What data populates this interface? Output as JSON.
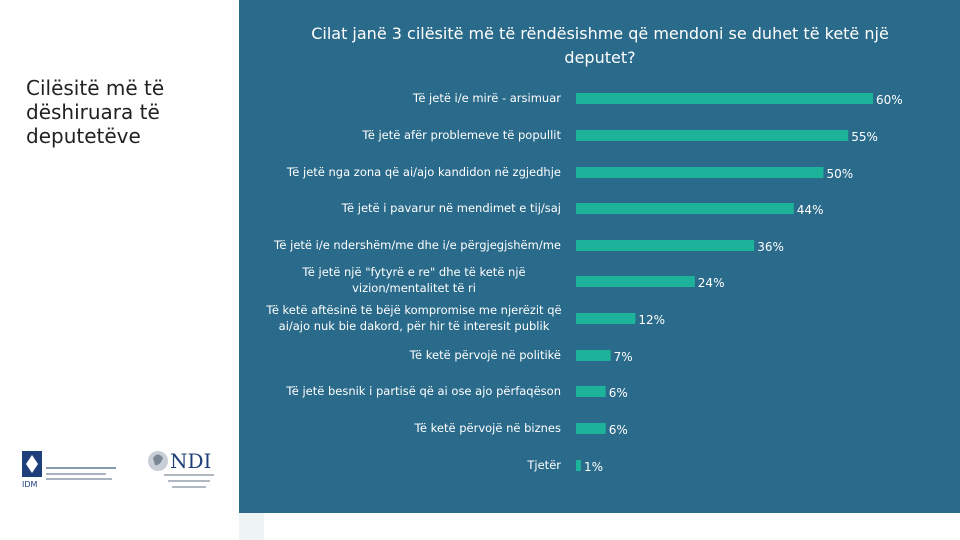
{
  "slide_title": "Cilësitë më të dëshiruara të deputetëve",
  "colors": {
    "panel": "#2a6a8a",
    "bar": "#1db39a",
    "text": "#ffffff"
  },
  "logos": {
    "idm": {
      "mark": "IDM"
    },
    "ndi": {
      "mark": "NDI"
    }
  },
  "chart_data": {
    "type": "bar",
    "orientation": "horizontal",
    "title": "Cilat janë 3 cilësitë më të rëndësishme që mendoni se duhet të ketë një deputet?",
    "xlabel": "",
    "ylabel": "",
    "xlim": [
      0,
      100
    ],
    "grid": false,
    "legend": "none",
    "categories": [
      "Të jetë i/e mirë - arsimuar",
      "Të jetë afër problemeve të popullit",
      "Të jetë nga zona që ai/ajo kandidon në zgjedhje",
      "Të jetë i pavarur në mendimet e tij/saj",
      "Të jetë i/e ndershëm/me dhe i/e përgjegjshëm/me",
      "Të jetë një \"fytyrë e re\" dhe të ketë një vizion/mentalitet të ri",
      "Të ketë aftësinë të bëjë kompromise me njerëzit që ai/ajo nuk bie dakord, për hir të interesit publik",
      "Të ketë përvojë në politikë",
      "Të jetë besnik i partisë që ai ose ajo përfaqëson",
      "Të ketë përvojë në biznes",
      "Tjetër"
    ],
    "values": [
      60,
      55,
      50,
      44,
      36,
      24,
      12,
      7,
      6,
      6,
      1
    ],
    "value_labels": [
      "60%",
      "55%",
      "50%",
      "44%",
      "36%",
      "24%",
      "12%",
      "7%",
      "6%",
      "6%",
      "1%"
    ]
  }
}
